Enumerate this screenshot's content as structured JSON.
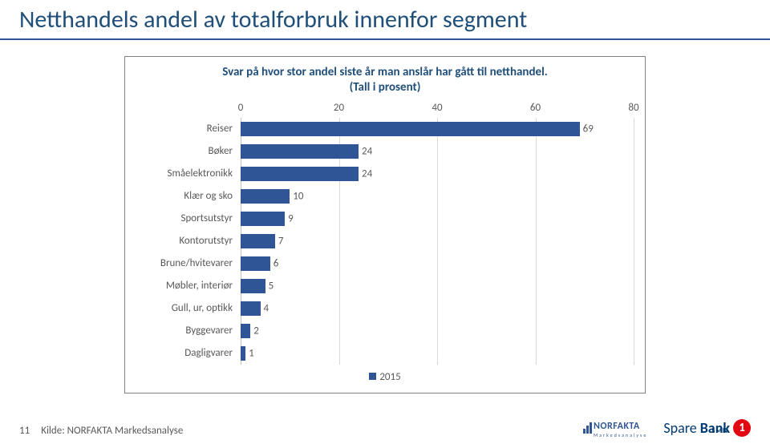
{
  "title": "Netthandels andel av totalforbruk innenfor segment",
  "page_number": "11",
  "source_label": "Kilde: NORFAKTA Markedsanalyse",
  "chart": {
    "type": "bar-horizontal",
    "title_line1": "Svar på hvor stor andel siste år man anslår har gått til netthandel.",
    "title_line2": "(Tall i prosent)",
    "xlim": [
      0,
      80
    ],
    "xtick_step": 20,
    "xticks": [
      0,
      20,
      40,
      60,
      80
    ],
    "bar_color": "#2f5597",
    "grid_color": "#d9d9d9",
    "axis_color": "#bfbfbf",
    "background_color": "#ffffff",
    "label_fontsize": 13,
    "title_fontsize": 15,
    "title_color": "#1f4e79",
    "categories": [
      "Reiser",
      "Bøker",
      "Småelektronikk",
      "Klær og sko",
      "Sportsutstyr",
      "Kontorutstyr",
      "Brune/hvitevarer",
      "Møbler, interiør",
      "Gull, ur, optikk",
      "Byggevarer",
      "Dagligvarer"
    ],
    "values": [
      69,
      24,
      24,
      10,
      9,
      7,
      6,
      5,
      4,
      2,
      1
    ],
    "legend_label": "2015"
  },
  "logos": {
    "norfakta": {
      "name": "NORFAKTA",
      "sub": "Markedsanalyse",
      "color": "#2f5597"
    },
    "sparebank": {
      "part1": "Spare",
      "part2": "Bank",
      "badge": "1",
      "sub": "SMN",
      "text_color": "#003a70",
      "badge_color": "#e30613"
    }
  }
}
